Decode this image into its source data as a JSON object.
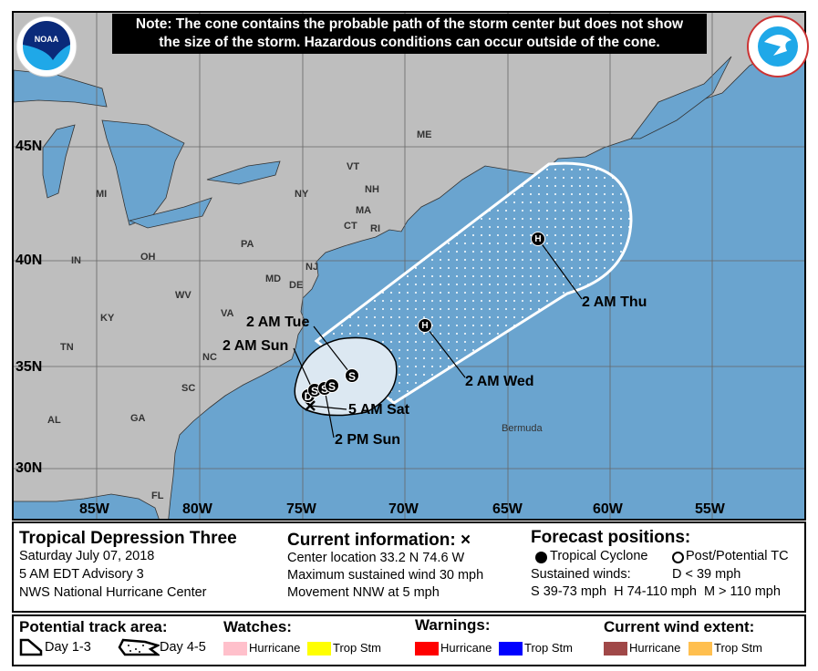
{
  "note": {
    "line1": "Note: The cone contains the probable path of the storm center but does not show",
    "line2": "the size of the storm. Hazardous conditions can occur outside of the cone."
  },
  "logos": {
    "left": "NOAA",
    "right": "NATIONAL WEATHER SERVICE"
  },
  "colors": {
    "land": "#bebebe",
    "ocean": "#6aa4cf",
    "cone_day13": "#dce8f2",
    "cone_day45_dots": "#ffffff"
  },
  "map": {
    "lat_labels": [
      "45N",
      "40N",
      "35N",
      "30N"
    ],
    "lon_labels": [
      "85W",
      "80W",
      "75W",
      "70W",
      "65W",
      "60W",
      "55W"
    ],
    "states": [
      "ME",
      "VT",
      "NH",
      "NY",
      "MA",
      "CT",
      "RI",
      "MI",
      "PA",
      "NJ",
      "IN",
      "OH",
      "WV",
      "MD",
      "DE",
      "VA",
      "KY",
      "TN",
      "NC",
      "SC",
      "AL",
      "GA",
      "FL"
    ],
    "bermuda": "Bermuda",
    "forecast_labels": [
      "2 AM Tue",
      "2 AM Sun",
      "5 AM Sat",
      "2 PM Sun",
      "2 AM Wed",
      "2 AM Thu"
    ],
    "markers": [
      "D",
      "S",
      "S",
      "S",
      "S",
      "H",
      "H"
    ]
  },
  "info": {
    "title": "Tropical Depression Three",
    "date": "Saturday July 07, 2018",
    "advisory": "5 AM EDT Advisory 3",
    "center": "NWS National Hurricane Center",
    "current_title": "Current information: ×",
    "location": "Center location 33.2 N 74.6 W",
    "wind": "Maximum sustained wind 30 mph",
    "movement": "Movement NNW at 5 mph",
    "forecast_title": "Forecast positions:",
    "tc": "Tropical Cyclone",
    "ptc": "Post/Potential TC",
    "sustained": "Sustained winds:",
    "d": "D < 39 mph",
    "shm": "S 39-73 mph  H 74-110 mph  M > 110 mph"
  },
  "legend": {
    "track_title": "Potential track area:",
    "day13": "Day 1-3",
    "day45": "Day 4-5",
    "watches_title": "Watches:",
    "warnings_title": "Warnings:",
    "wind_title": "Current wind extent:",
    "hurricane": "Hurricane",
    "tropstm": "Trop Stm",
    "watch_colors": [
      "#ffc0cb",
      "#ffff00"
    ],
    "warning_colors": [
      "#ff0000",
      "#0000ff"
    ],
    "wind_colors": [
      "#a04848",
      "#ffbf4f"
    ]
  }
}
